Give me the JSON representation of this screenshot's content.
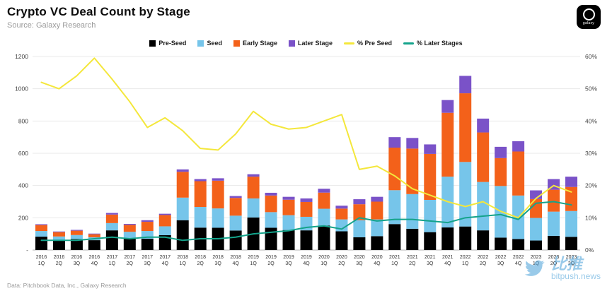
{
  "header": {
    "title": "Crypto VC Deal Count by Stage",
    "source": "Source: Galaxy Research",
    "logo_word": "galaxy"
  },
  "footer": {
    "text": "Data: Pitchbook Data, Inc., Galaxy Research"
  },
  "watermark": {
    "cn": "比推",
    "site": "bitpush.news"
  },
  "chart_data": {
    "type": "bar",
    "subtype": "stacked-bar-with-lines",
    "grid": true,
    "legend_position": "top",
    "categories": [
      "2016 1Q",
      "2016 2Q",
      "2016 3Q",
      "2016 4Q",
      "2017 1Q",
      "2017 2Q",
      "2017 3Q",
      "2017 4Q",
      "2018 1Q",
      "2018 2Q",
      "2018 3Q",
      "2018 4Q",
      "2019 1Q",
      "2019 2Q",
      "2019 3Q",
      "2019 4Q",
      "2020 1Q",
      "2020 2Q",
      "2020 3Q",
      "2020 4Q",
      "2021 1Q",
      "2021 2Q",
      "2021 3Q",
      "2021 4Q",
      "2022 1Q",
      "2022 2Q",
      "2022 3Q",
      "2022 4Q",
      "2023 1Q",
      "2023 2Q",
      "2023 3Q"
    ],
    "left_axis": {
      "min": 0,
      "max": 1200,
      "tick_values": [
        1200,
        1000,
        800,
        600,
        400,
        200,
        0
      ],
      "tick_labels": [
        "1200",
        "1000",
        "800",
        "600",
        "400",
        "200",
        "-"
      ]
    },
    "right_axis": {
      "min": 0,
      "max": 60,
      "tick_values": [
        60,
        50,
        40,
        30,
        20,
        10,
        0
      ],
      "tick_labels": [
        "60%",
        "50%",
        "40%",
        "30%",
        "20%",
        "10%",
        "0%"
      ]
    },
    "series": [
      {
        "name": "Pre-Seed",
        "type": "bar",
        "color": "#000000",
        "values": [
          83,
          58,
          68,
          61,
          122,
          75,
          70,
          92,
          185,
          139,
          138,
          121,
          202,
          138,
          124,
          122,
          152,
          116,
          79,
          86,
          161,
          132,
          111,
          140,
          146,
          122,
          77,
          68,
          59,
          88,
          82
        ]
      },
      {
        "name": "Seed",
        "type": "bar",
        "color": "#76C5EA",
        "values": [
          35,
          26,
          25,
          18,
          45,
          38,
          48,
          55,
          140,
          128,
          120,
          92,
          118,
          97,
          92,
          84,
          104,
          74,
          106,
          104,
          210,
          215,
          200,
          315,
          400,
          300,
          320,
          270,
          140,
          150,
          160
        ]
      },
      {
        "name": "Early Stage",
        "type": "bar",
        "color": "#F3611A",
        "values": [
          37,
          27,
          27,
          19,
          53,
          43,
          57,
          70,
          160,
          160,
          172,
          110,
          135,
          103,
          96,
          92,
          100,
          67,
          99,
          110,
          264,
          282,
          285,
          396,
          426,
          307,
          173,
          273,
          117,
          136,
          149
        ]
      },
      {
        "name": "Later Stage",
        "type": "bar",
        "color": "#7A52C8",
        "values": [
          5,
          4,
          5,
          4,
          10,
          6,
          10,
          8,
          15,
          13,
          15,
          12,
          15,
          17,
          18,
          22,
          24,
          18,
          31,
          30,
          65,
          66,
          59,
          79,
          108,
          86,
          70,
          64,
          54,
          66,
          64
        ]
      },
      {
        "name": "% Pre Seed",
        "type": "line",
        "axis": "right",
        "color": "#F4E73B",
        "values": [
          52,
          50,
          54,
          59.5,
          53,
          46,
          38,
          41,
          37,
          31.5,
          31,
          36,
          43,
          39,
          37.5,
          38,
          40,
          42,
          25,
          26,
          23,
          19,
          17,
          15,
          13.5,
          15,
          12,
          10,
          16,
          20,
          18
        ]
      },
      {
        "name": "% Later Stages",
        "type": "line",
        "axis": "right",
        "color": "#14A38B",
        "values": [
          3,
          3,
          3,
          3.5,
          4,
          3.5,
          4,
          4,
          3,
          3.5,
          3.5,
          4,
          5,
          5.5,
          6,
          7,
          7.5,
          6.5,
          10,
          9,
          9.5,
          9.5,
          9,
          8.5,
          10,
          10.5,
          11,
          9.5,
          14.5,
          15,
          14
        ]
      }
    ]
  }
}
